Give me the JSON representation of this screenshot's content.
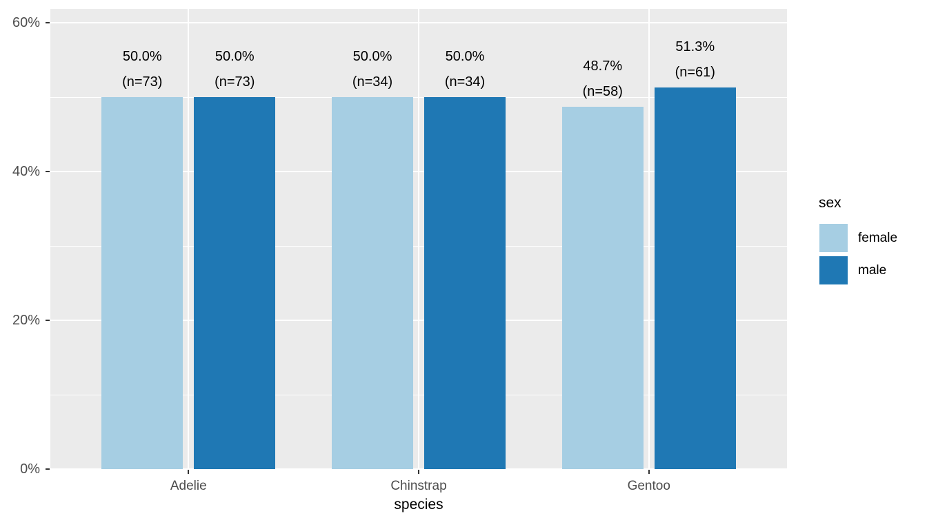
{
  "figure": {
    "background": "#FFFFFF",
    "panel_background": "#EBEBEB",
    "grid_color": "#FFFFFF",
    "tick_mark_color": "#333333",
    "axis_text_color": "#4D4D4D",
    "bar_label_color": "#000000"
  },
  "legend": {
    "title": "sex",
    "items": [
      {
        "label": "female",
        "color": "#A6CEE3"
      },
      {
        "label": "male",
        "color": "#1F78B4"
      }
    ]
  },
  "chart_data": {
    "type": "bar",
    "title": "",
    "xlabel": "species",
    "ylabel": "",
    "categories": [
      "Adelie",
      "Chinstrap",
      "Gentoo"
    ],
    "series": [
      {
        "name": "female",
        "color": "#A6CEE3",
        "values": [
          50.0,
          50.0,
          48.7
        ],
        "counts": [
          73,
          34,
          58
        ],
        "labels": [
          [
            "50.0%",
            "(n=73)"
          ],
          [
            "50.0%",
            "(n=34)"
          ],
          [
            "48.7%",
            "(n=58)"
          ]
        ]
      },
      {
        "name": "male",
        "color": "#1F78B4",
        "values": [
          50.0,
          50.0,
          51.3
        ],
        "counts": [
          73,
          34,
          61
        ],
        "labels": [
          [
            "50.0%",
            "(n=73)"
          ],
          [
            "50.0%",
            "(n=34)"
          ],
          [
            "51.3%",
            "(n=61)"
          ]
        ]
      }
    ],
    "ylim": [
      0,
      60
    ],
    "y_ticks": [
      {
        "value": 0,
        "label": "0%"
      },
      {
        "value": 20,
        "label": "20%"
      },
      {
        "value": 40,
        "label": "40%"
      },
      {
        "value": 60,
        "label": "60%"
      }
    ],
    "y_minor_ticks": [
      10,
      30,
      50
    ],
    "grid": true,
    "legend_position": "right",
    "legend_title": "sex"
  }
}
